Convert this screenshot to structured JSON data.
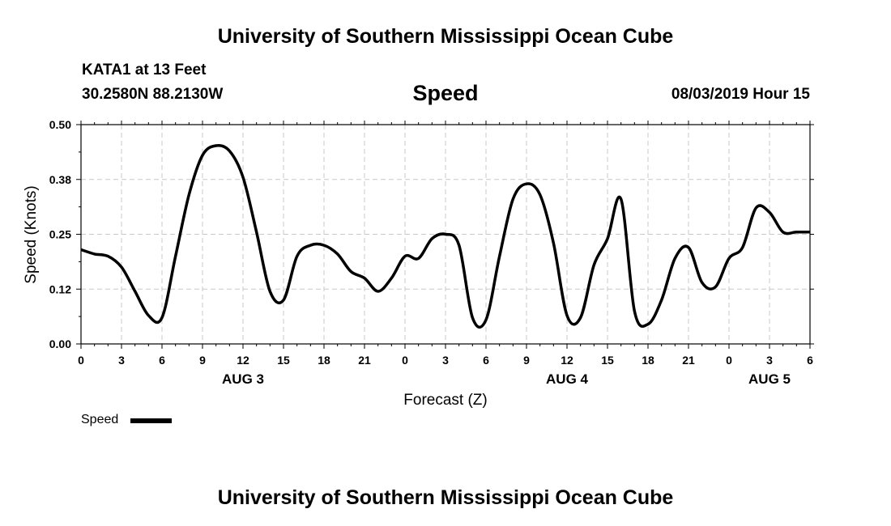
{
  "header": {
    "title": "University of Southern Mississippi Ocean Cube",
    "station": "KATA1 at 13 Feet",
    "coordinates": "30.2580N 88.2130W",
    "variable": "Speed",
    "timestamp": "08/03/2019 Hour 15"
  },
  "footer": {
    "title": "University of Southern Mississippi Ocean Cube"
  },
  "legend": {
    "label": "Speed"
  },
  "chart_data": {
    "type": "line",
    "title": "Speed",
    "xlabel": "Forecast (Z)",
    "ylabel": "Speed (Knots)",
    "ylim": [
      0,
      0.5
    ],
    "yticks": [
      "0.00",
      "0.12",
      "0.25",
      "0.38",
      "0.50"
    ],
    "xlim": [
      0,
      54
    ],
    "xticks": [
      "0",
      "3",
      "6",
      "9",
      "12",
      "15",
      "18",
      "21",
      "0",
      "3",
      "6",
      "9",
      "12",
      "15",
      "18",
      "21",
      "0",
      "3",
      "6"
    ],
    "date_labels": [
      {
        "label": "AUG 3",
        "hour": 12
      },
      {
        "label": "AUG 4",
        "hour": 36
      },
      {
        "label": "AUG 5",
        "hour": 51
      }
    ],
    "grid": true,
    "series": [
      {
        "name": "Speed",
        "x": [
          0,
          1,
          2,
          3,
          4,
          5,
          6,
          7,
          8,
          9,
          10,
          11,
          12,
          13,
          14,
          15,
          16,
          17,
          18,
          19,
          20,
          21,
          22,
          23,
          24,
          25,
          26,
          27,
          28,
          29,
          30,
          31,
          32,
          33,
          34,
          35,
          36,
          37,
          38,
          39,
          40,
          41,
          42,
          43,
          44,
          45,
          46,
          47,
          48,
          49,
          50,
          51,
          52,
          53,
          54
        ],
        "values": [
          0.215,
          0.205,
          0.2,
          0.175,
          0.12,
          0.065,
          0.06,
          0.2,
          0.34,
          0.43,
          0.452,
          0.44,
          0.38,
          0.255,
          0.12,
          0.1,
          0.2,
          0.225,
          0.225,
          0.205,
          0.165,
          0.15,
          0.12,
          0.15,
          0.2,
          0.195,
          0.24,
          0.25,
          0.225,
          0.06,
          0.055,
          0.2,
          0.33,
          0.365,
          0.34,
          0.23,
          0.065,
          0.06,
          0.18,
          0.24,
          0.33,
          0.075,
          0.045,
          0.1,
          0.195,
          0.22,
          0.14,
          0.13,
          0.195,
          0.22,
          0.31,
          0.3,
          0.255,
          0.255,
          0.255
        ]
      }
    ]
  }
}
